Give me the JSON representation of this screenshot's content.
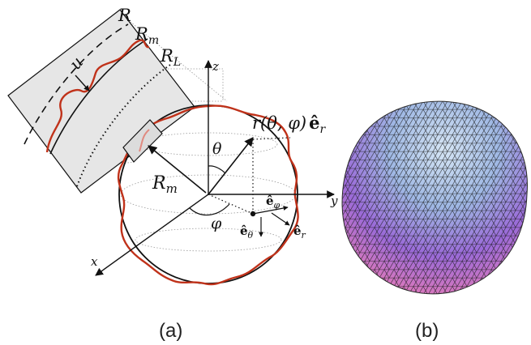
{
  "panel_a": {
    "caption": "(a)",
    "labels": {
      "R": "R",
      "R_m_inset": "R",
      "R_m_inset_sub": "m",
      "R_L": "R",
      "R_L_sub": "L",
      "u": "u",
      "z_axis": "z",
      "y_axis": "y",
      "x_axis": "x",
      "theta": "θ",
      "phi": "φ",
      "R_m_main": "R",
      "R_m_main_sub": "m",
      "r_func": "r(θ, φ)",
      "e_r_top": "ê",
      "e_r_top_sub": "r",
      "e_phi": "ê",
      "e_phi_sub": "φ",
      "e_theta": "ê",
      "e_theta_sub": "θ",
      "e_r": "ê",
      "e_r_sub": "r"
    },
    "colors": {
      "wavy": "#c0321a",
      "outline": "#111111",
      "guide": "#888888",
      "box_fill": "#e6e6e6"
    }
  },
  "panel_b": {
    "caption": "(b)",
    "colors": {
      "top": "#bcd3ec",
      "mid": "#8c62d6",
      "bottom": "#f07ab0",
      "mesh": "#1a1a1a"
    }
  }
}
